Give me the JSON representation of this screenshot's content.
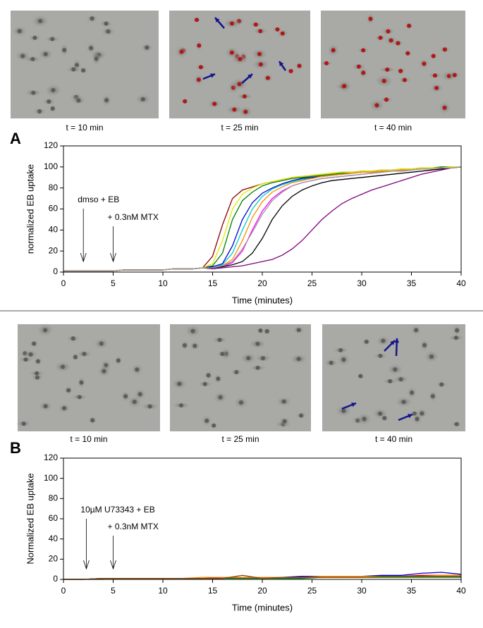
{
  "chart_data": [
    {
      "type": "line",
      "panel_label": "A",
      "image_captions": [
        "t = 10 min",
        "t = 25 min",
        "t = 40 min"
      ],
      "xlabel": "Time (minutes)",
      "ylabel": "normalized EB uptake",
      "xlim": [
        0,
        40
      ],
      "xticks": [
        0,
        5,
        10,
        15,
        20,
        25,
        30,
        35,
        40
      ],
      "ylim": [
        0,
        120
      ],
      "yticks": [
        0,
        20,
        40,
        60,
        80,
        100,
        120
      ],
      "annotations": [
        {
          "text": "dmso + EB",
          "x": 2
        },
        {
          "text": "+ 0.3nM MTX",
          "x": 5
        }
      ],
      "x": [
        0,
        1,
        2,
        3,
        4,
        5,
        6,
        7,
        8,
        9,
        10,
        11,
        12,
        13,
        14,
        15,
        16,
        17,
        18,
        19,
        20,
        21,
        22,
        23,
        24,
        25,
        26,
        27,
        28,
        29,
        30,
        31,
        32,
        33,
        34,
        35,
        36,
        37,
        38,
        39,
        40
      ],
      "series": [
        {
          "color": "#8b0000",
          "values": [
            1,
            1,
            1,
            1,
            1,
            1,
            2,
            2,
            2,
            2,
            2,
            3,
            3,
            3,
            4,
            15,
            45,
            70,
            78,
            81,
            84,
            86,
            88,
            90,
            91,
            92,
            93,
            94,
            95,
            95,
            96,
            96,
            97,
            97,
            98,
            98,
            99,
            99,
            99,
            100,
            100
          ]
        },
        {
          "color": "#008000",
          "values": [
            1,
            1,
            1,
            1,
            1,
            1,
            2,
            2,
            2,
            2,
            2,
            3,
            3,
            3,
            4,
            6,
            18,
            50,
            68,
            76,
            82,
            85,
            87,
            89,
            90,
            91,
            92,
            93,
            94,
            95,
            95,
            96,
            97,
            97,
            98,
            98,
            99,
            99,
            100,
            100,
            100
          ]
        },
        {
          "color": "#0000cc",
          "values": [
            1,
            1,
            1,
            1,
            1,
            1,
            2,
            2,
            2,
            2,
            2,
            3,
            3,
            3,
            4,
            5,
            8,
            25,
            50,
            66,
            75,
            80,
            84,
            87,
            89,
            90,
            91,
            92,
            93,
            94,
            95,
            95,
            96,
            97,
            97,
            98,
            98,
            99,
            99,
            100,
            100
          ]
        },
        {
          "color": "#00cccc",
          "values": [
            1,
            1,
            1,
            1,
            1,
            1,
            2,
            2,
            2,
            2,
            2,
            3,
            3,
            3,
            4,
            4,
            7,
            18,
            40,
            60,
            72,
            79,
            83,
            86,
            88,
            89,
            91,
            92,
            93,
            94,
            95,
            95,
            96,
            97,
            97,
            98,
            98,
            99,
            99,
            100,
            100
          ]
        },
        {
          "color": "#ff8c00",
          "values": [
            1,
            1,
            1,
            1,
            1,
            1,
            2,
            2,
            2,
            2,
            2,
            3,
            3,
            3,
            4,
            4,
            6,
            12,
            30,
            52,
            67,
            76,
            81,
            85,
            87,
            89,
            91,
            92,
            93,
            94,
            95,
            95,
            96,
            97,
            97,
            98,
            98,
            99,
            99,
            100,
            100
          ]
        },
        {
          "color": "#ff00ff",
          "values": [
            1,
            1,
            1,
            1,
            1,
            1,
            2,
            2,
            2,
            2,
            2,
            3,
            3,
            3,
            4,
            4,
            5,
            9,
            20,
            40,
            58,
            70,
            77,
            82,
            85,
            87,
            89,
            90,
            91,
            92,
            93,
            94,
            95,
            96,
            96,
            97,
            98,
            98,
            99,
            99,
            100
          ]
        },
        {
          "color": "#000000",
          "values": [
            1,
            1,
            1,
            1,
            1,
            1,
            2,
            2,
            2,
            2,
            2,
            3,
            3,
            3,
            4,
            4,
            5,
            7,
            10,
            18,
            32,
            50,
            63,
            72,
            78,
            82,
            85,
            87,
            88,
            89,
            90,
            91,
            92,
            93,
            94,
            95,
            96,
            97,
            98,
            99,
            100
          ]
        },
        {
          "color": "#800080",
          "values": [
            1,
            1,
            1,
            1,
            1,
            1,
            2,
            2,
            2,
            2,
            2,
            3,
            3,
            3,
            4,
            3,
            4,
            5,
            6,
            8,
            10,
            12,
            16,
            22,
            30,
            40,
            50,
            58,
            65,
            70,
            74,
            78,
            81,
            84,
            87,
            90,
            93,
            95,
            97,
            99,
            100
          ]
        },
        {
          "color": "#e6e600",
          "values": [
            1,
            1,
            1,
            1,
            1,
            1,
            2,
            2,
            2,
            2,
            2,
            3,
            3,
            3,
            4,
            8,
            30,
            60,
            74,
            80,
            84,
            86,
            88,
            90,
            91,
            92,
            93,
            94,
            95,
            95,
            96,
            96,
            97,
            97,
            98,
            98,
            99,
            99,
            99,
            100,
            100
          ]
        },
        {
          "color": "#999999",
          "values": [
            1,
            1,
            1,
            1,
            1,
            1,
            2,
            2,
            2,
            2,
            2,
            3,
            3,
            3,
            4,
            4,
            6,
            10,
            22,
            38,
            55,
            68,
            76,
            82,
            85,
            87,
            89,
            90,
            91,
            92,
            93,
            94,
            95,
            96,
            96,
            97,
            98,
            98,
            99,
            99,
            100
          ]
        }
      ]
    },
    {
      "type": "line",
      "panel_label": "B",
      "image_captions": [
        "t = 10 min",
        "t = 25 min",
        "t = 40 min"
      ],
      "xlabel": "Time (minutes)",
      "ylabel": "Normalized EB uptake",
      "xlim": [
        0,
        40
      ],
      "xticks": [
        0,
        5,
        10,
        15,
        20,
        25,
        30,
        35,
        40
      ],
      "ylim": [
        0,
        120
      ],
      "yticks": [
        0,
        20,
        40,
        60,
        80,
        100,
        120
      ],
      "annotations": [
        {
          "text": "10µM U73343 + EB",
          "x": 2.3
        },
        {
          "text": "+ 0.3nM MTX",
          "x": 5
        }
      ],
      "x": [
        0,
        2,
        4,
        6,
        8,
        10,
        12,
        14,
        16,
        18,
        20,
        22,
        24,
        26,
        28,
        30,
        32,
        34,
        36,
        38,
        40
      ],
      "series": [
        {
          "color": "#0000cc",
          "values": [
            0,
            0,
            1,
            1,
            1,
            1,
            1,
            1,
            2,
            2,
            2,
            2,
            3,
            3,
            3,
            3,
            4,
            4,
            6,
            7,
            5
          ]
        },
        {
          "color": "#cc0000",
          "values": [
            0,
            0,
            1,
            1,
            1,
            1,
            1,
            1,
            1,
            2,
            2,
            2,
            2,
            2,
            3,
            3,
            3,
            3,
            4,
            4,
            4
          ]
        },
        {
          "color": "#008000",
          "values": [
            0,
            0,
            0,
            1,
            1,
            1,
            1,
            1,
            1,
            1,
            1,
            1,
            1,
            2,
            2,
            2,
            2,
            2,
            2,
            2,
            2
          ]
        },
        {
          "color": "#ff8c00",
          "values": [
            0,
            0,
            1,
            1,
            1,
            1,
            1,
            2,
            2,
            2,
            2,
            2,
            2,
            3,
            3,
            3,
            3,
            3,
            3,
            4,
            4
          ]
        },
        {
          "color": "#8b4513",
          "values": [
            0,
            0,
            1,
            1,
            1,
            1,
            1,
            1,
            1,
            4,
            1,
            2,
            2,
            2,
            2,
            2,
            3,
            3,
            3,
            3,
            3
          ]
        }
      ]
    }
  ]
}
